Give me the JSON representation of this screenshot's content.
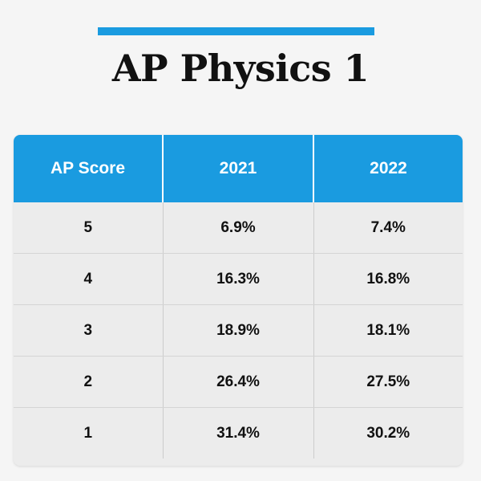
{
  "header": {
    "title": "AP Physics 1"
  },
  "table": {
    "columns": [
      "AP Score",
      "2021",
      "2022"
    ],
    "rows": [
      [
        "5",
        "6.9%",
        "7.4%"
      ],
      [
        "4",
        "16.3%",
        "16.8%"
      ],
      [
        "3",
        "18.9%",
        "18.1%"
      ],
      [
        "2",
        "26.4%",
        "27.5%"
      ],
      [
        "1",
        "31.4%",
        "30.2%"
      ]
    ]
  }
}
